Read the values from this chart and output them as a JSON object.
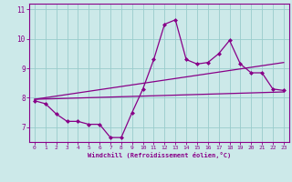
{
  "xlabel": "Windchill (Refroidissement éolien,°C)",
  "background_color": "#cce9e9",
  "line_color": "#880088",
  "grid_color": "#99cccc",
  "xlim": [
    -0.5,
    23.5
  ],
  "ylim": [
    6.5,
    11.2
  ],
  "yticks": [
    7,
    8,
    9,
    10,
    11
  ],
  "xticks": [
    0,
    1,
    2,
    3,
    4,
    5,
    6,
    7,
    8,
    9,
    10,
    11,
    12,
    13,
    14,
    15,
    16,
    17,
    18,
    19,
    20,
    21,
    22,
    23
  ],
  "data_line": [
    7.9,
    7.8,
    7.45,
    7.2,
    7.2,
    7.1,
    7.1,
    6.65,
    6.65,
    7.5,
    8.3,
    9.3,
    10.5,
    10.65,
    9.3,
    9.15,
    9.2,
    9.5,
    9.95,
    9.15,
    8.85,
    8.85,
    8.3,
    8.25
  ],
  "reg_line_upper_start": 7.95,
  "reg_line_upper_end": 9.2,
  "reg_line_lower_start": 7.95,
  "reg_line_lower_end": 8.2
}
